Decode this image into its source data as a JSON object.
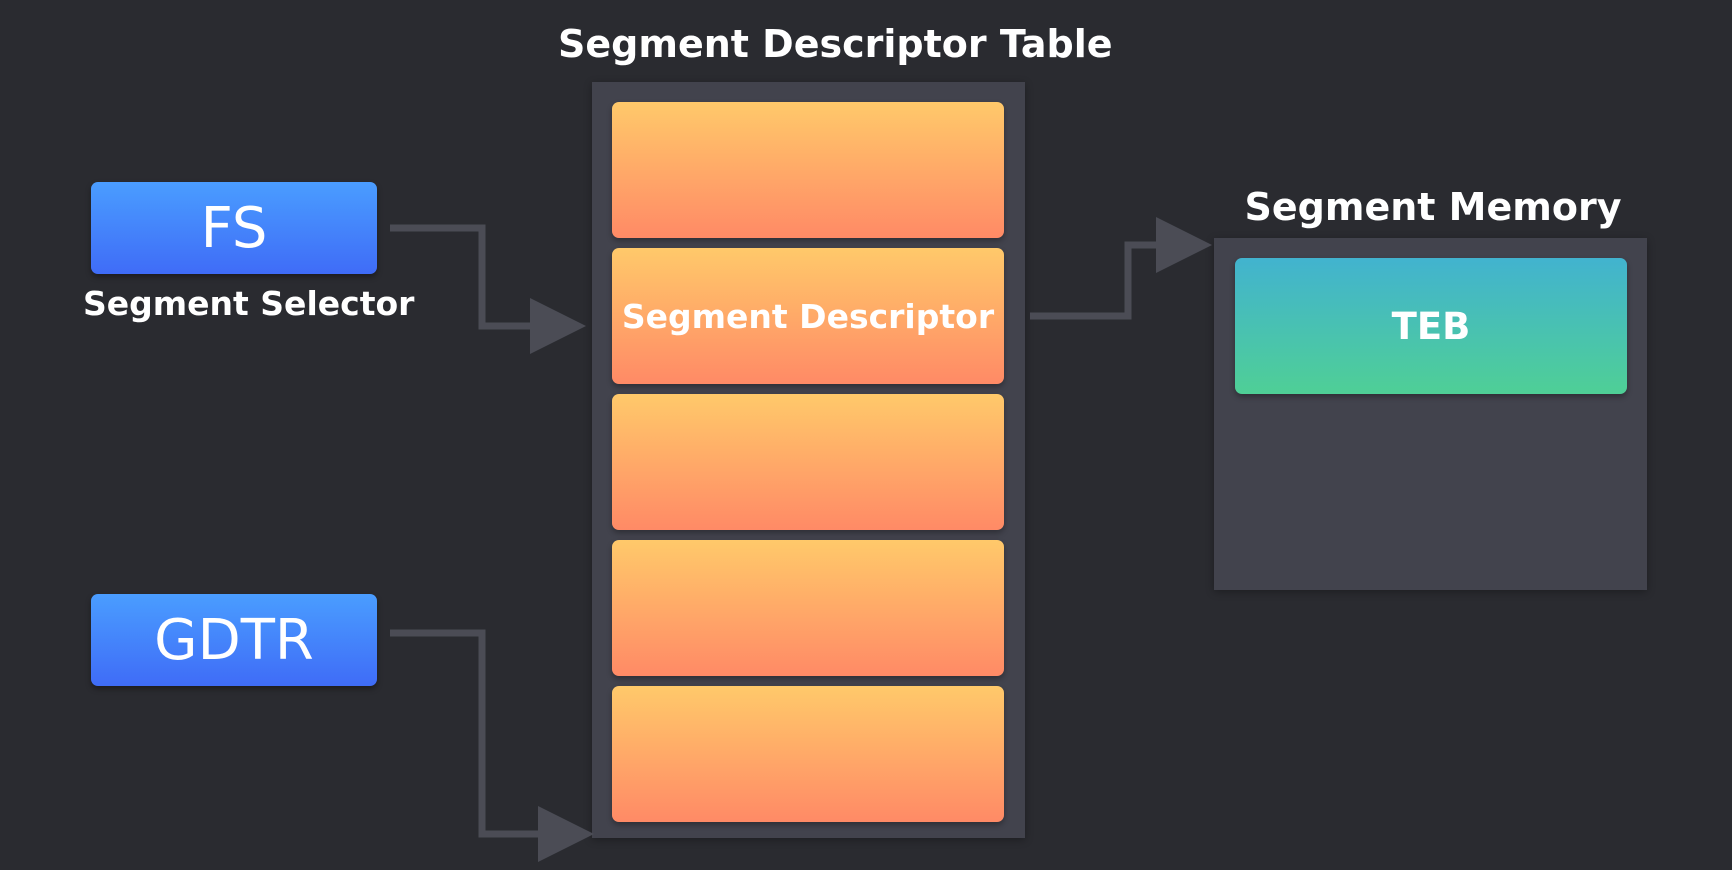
{
  "table": {
    "title": "Segment Descriptor Table",
    "descriptor_label": "Segment Descriptor",
    "slots": [
      "",
      "Segment Descriptor",
      "",
      "",
      ""
    ]
  },
  "registers": {
    "fs": {
      "label": "FS",
      "caption": "Segment Selector"
    },
    "gdtr": {
      "label": "GDTR"
    }
  },
  "memory": {
    "title": "Segment Memory",
    "teb_label": "TEB"
  },
  "colors": {
    "background": "#2a2b30",
    "panel": "#42434d",
    "register_gradient": [
      "#4a9dff",
      "#3f6cf7"
    ],
    "descriptor_gradient": [
      "#ffc96a",
      "#ff8a66"
    ],
    "teb_gradient": [
      "#42b3cf",
      "#4fcf96"
    ],
    "connector": "#4b4c55"
  }
}
